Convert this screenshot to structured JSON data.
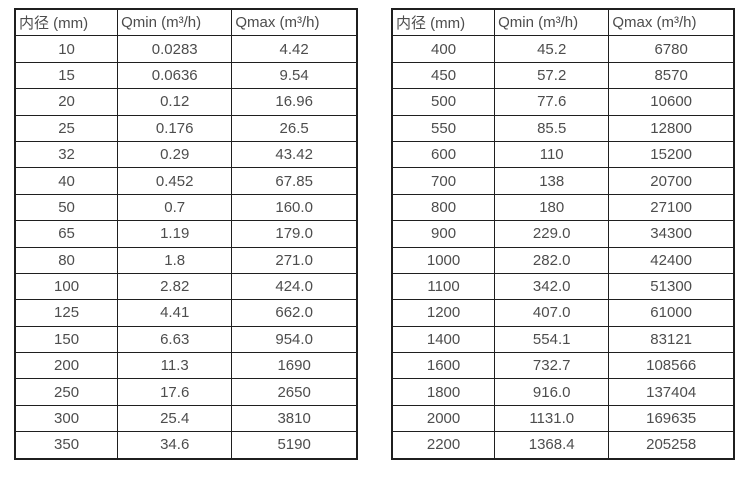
{
  "colors": {
    "border": "#1f1f1f",
    "text": "#4d4d4d",
    "background": "#ffffff"
  },
  "tables": [
    {
      "name": "small-diameter-flow-table",
      "headers": [
        "内径 (mm)",
        "Qmin (m³/h)",
        "Qmax (m³/h)"
      ],
      "rows": [
        [
          "10",
          "0.0283",
          "4.42"
        ],
        [
          "15",
          "0.0636",
          "9.54"
        ],
        [
          "20",
          "0.12",
          "16.96"
        ],
        [
          "25",
          "0.176",
          "26.5"
        ],
        [
          "32",
          "0.29",
          "43.42"
        ],
        [
          "40",
          "0.452",
          "67.85"
        ],
        [
          "50",
          "0.7",
          "160.0"
        ],
        [
          "65",
          "1.19",
          "179.0"
        ],
        [
          "80",
          "1.8",
          "271.0"
        ],
        [
          "100",
          "2.82",
          "424.0"
        ],
        [
          "125",
          "4.41",
          "662.0"
        ],
        [
          "150",
          "6.63",
          "954.0"
        ],
        [
          "200",
          "11.3",
          "1690"
        ],
        [
          "250",
          "17.6",
          "2650"
        ],
        [
          "300",
          "25.4",
          "3810"
        ],
        [
          "350",
          "34.6",
          "5190"
        ]
      ]
    },
    {
      "name": "large-diameter-flow-table",
      "headers": [
        "内径 (mm)",
        "Qmin (m³/h)",
        "Qmax (m³/h)"
      ],
      "rows": [
        [
          "400",
          "45.2",
          "6780"
        ],
        [
          "450",
          "57.2",
          "8570"
        ],
        [
          "500",
          "77.6",
          "10600"
        ],
        [
          "550",
          "85.5",
          "12800"
        ],
        [
          "600",
          "110",
          "15200"
        ],
        [
          "700",
          "138",
          "20700"
        ],
        [
          "800",
          "180",
          "27100"
        ],
        [
          "900",
          "229.0",
          "34300"
        ],
        [
          "1000",
          "282.0",
          "42400"
        ],
        [
          "1100",
          "342.0",
          "51300"
        ],
        [
          "1200",
          "407.0",
          "61000"
        ],
        [
          "1400",
          "554.1",
          "83121"
        ],
        [
          "1600",
          "732.7",
          "108566"
        ],
        [
          "1800",
          "916.0",
          "137404"
        ],
        [
          "2000",
          "1131.0",
          "169635"
        ],
        [
          "2200",
          "1368.4",
          "205258"
        ]
      ]
    }
  ]
}
